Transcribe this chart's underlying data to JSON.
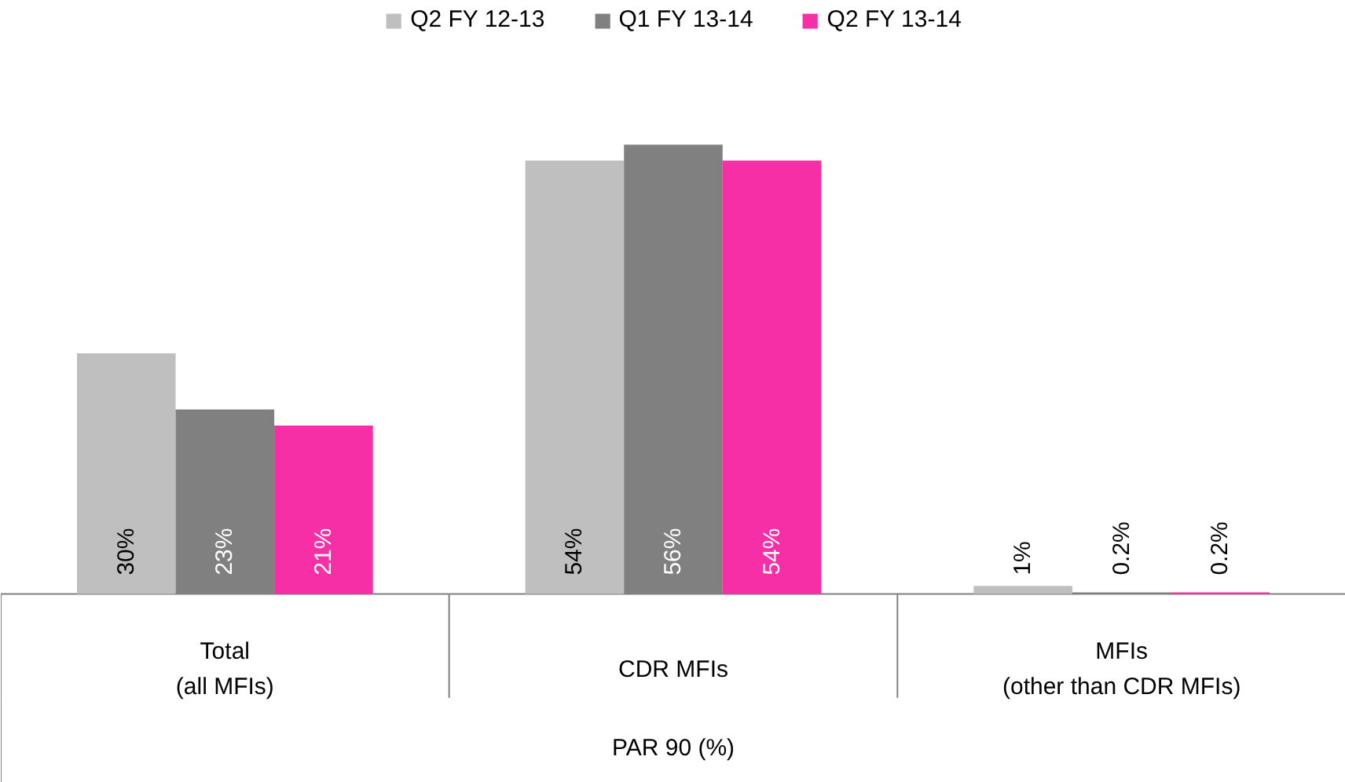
{
  "chart_data": {
    "type": "bar",
    "xlabel": "PAR 90 (%)",
    "categories": [
      "Total\n(all MFIs)",
      "CDR MFIs",
      "MFIs\n(other than CDR MFIs)"
    ],
    "series": [
      {
        "name": "Q2 FY 12-13",
        "color": "#bfbfbf",
        "values": [
          30,
          54,
          1
        ],
        "value_labels": [
          "30%",
          "54%",
          "1%"
        ]
      },
      {
        "name": "Q1 FY 13-14",
        "color": "#808080",
        "values": [
          23,
          56,
          0.2
        ],
        "value_labels": [
          "23%",
          "56%",
          "0.2%"
        ]
      },
      {
        "name": "Q2 FY 13-14",
        "color": "#f72fa6",
        "values": [
          21,
          54,
          0.2
        ],
        "value_labels": [
          "21%",
          "54%",
          "0.2%"
        ]
      }
    ],
    "legend": "top"
  }
}
